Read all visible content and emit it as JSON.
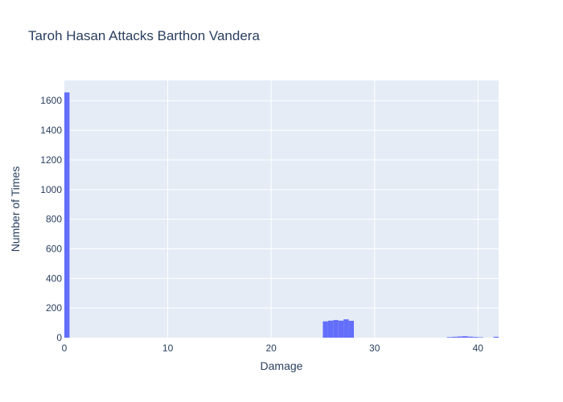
{
  "chart_data": {
    "type": "bar",
    "title": "Taroh Hasan Attacks Barthon Vandera",
    "xlabel": "Damage",
    "ylabel": "Number of Times",
    "xlim": [
      0,
      42
    ],
    "ylim": [
      0,
      1737
    ],
    "x_ticks": [
      0,
      10,
      20,
      30,
      40
    ],
    "y_ticks": [
      0,
      200,
      400,
      600,
      800,
      1000,
      1200,
      1400,
      1600
    ],
    "grid": true,
    "legend": "none",
    "bin_width": 0.5,
    "series": [
      {
        "x": [
          0,
          25,
          25.5,
          26,
          26.5,
          27,
          27.5,
          37,
          37.5,
          38,
          38.5,
          39,
          39.5,
          40,
          41.5
        ],
        "values": [
          1656,
          110,
          115,
          119,
          115,
          124,
          114,
          4,
          6,
          8,
          10,
          7,
          5,
          3,
          6
        ]
      }
    ],
    "colors": {
      "bar": "#636efa",
      "plot_bg": "#e5ecf6",
      "grid": "#ffffff",
      "text": "#2a3f5f"
    }
  }
}
